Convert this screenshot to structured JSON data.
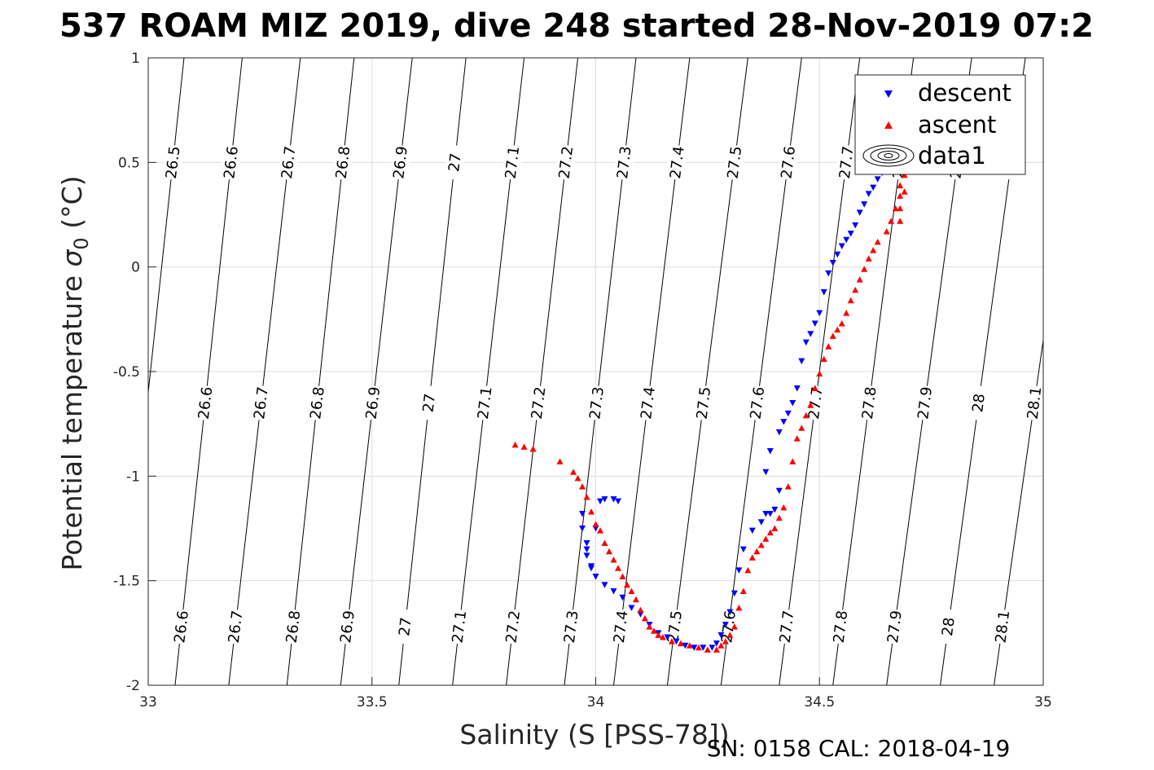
{
  "chart_data": {
    "type": "scatter",
    "title": "537 ROAM MIZ 2019, dive 248 started 28-Nov-2019 07:2",
    "xlabel": "Salinity (S [PSS-78])",
    "ylabel_main": "Potential temperature ",
    "ylabel_sigma": "σ",
    "ylabel_sub": "0",
    "ylabel_unit": " (°C)",
    "footer": "SN: 0158  CAL: 2018-04-19",
    "xlim": [
      33,
      35
    ],
    "ylim": [
      -2,
      1
    ],
    "x_ticks": [
      33,
      33.5,
      34,
      34.5,
      35
    ],
    "x_tick_labels": [
      "33",
      "33.5",
      "34",
      "34.5",
      "35"
    ],
    "y_ticks": [
      -2,
      -1.5,
      -1,
      -0.5,
      0,
      0.5,
      1
    ],
    "y_tick_labels": [
      "-2",
      "-1.5",
      "-1",
      "-0.5",
      "0",
      "0.5",
      "1"
    ],
    "grid": true,
    "legend_position": "top-right",
    "legend": [
      "descent",
      "ascent",
      "data1"
    ],
    "colors": {
      "descent": "#0000ff",
      "ascent": "#ff0000",
      "contour": "#000000",
      "grid": "#dcdcdc"
    },
    "density_contours": {
      "levels": [
        "26.5",
        "26.6",
        "26.7",
        "26.8",
        "26.9",
        "27",
        "27.1",
        "27.2",
        "27.3",
        "27.4",
        "27.5",
        "27.6",
        "27.7",
        "27.8",
        "27.9",
        "28",
        "28.1"
      ],
      "s_at_theta_minus2": [
        32.93,
        33.06,
        33.18,
        33.31,
        33.43,
        33.56,
        33.68,
        33.8,
        33.93,
        34.04,
        34.16,
        34.28,
        34.41,
        34.53,
        34.65,
        34.77,
        34.89
      ],
      "s_at_theta_1": [
        33.08,
        33.21,
        33.34,
        33.46,
        33.59,
        33.71,
        33.84,
        33.96,
        34.09,
        34.21,
        34.34,
        34.46,
        34.59,
        34.71,
        34.84,
        34.96,
        35.09
      ],
      "label_rows_theta": [
        0.5,
        -0.65,
        -1.72
      ]
    },
    "series": [
      {
        "name": "descent",
        "marker": "triangle-down",
        "x": [
          33.97,
          33.97,
          33.98,
          33.99,
          34.0,
          34.01,
          34.02,
          34.04,
          34.05,
          34.0,
          33.98,
          33.98,
          33.99,
          34.0,
          34.02,
          34.04,
          34.06,
          34.08,
          34.1,
          34.12,
          34.14,
          34.16,
          34.18,
          34.2,
          34.22,
          34.24,
          34.26,
          34.27,
          34.28,
          34.29,
          34.3,
          34.31,
          34.32,
          34.33,
          34.35,
          34.37,
          34.38,
          34.39,
          34.4,
          34.41,
          34.38,
          34.39,
          34.41,
          34.42,
          34.43,
          34.44,
          34.45,
          34.46,
          34.47,
          34.48,
          34.49,
          34.5,
          34.51,
          34.52,
          34.53,
          34.54,
          34.55,
          34.56,
          34.57,
          34.58,
          34.59,
          34.6,
          34.61,
          34.62,
          34.63,
          34.64,
          34.65
        ],
        "y": [
          -1.18,
          -1.25,
          -1.35,
          -1.43,
          -1.48,
          -1.12,
          -1.11,
          -1.11,
          -1.12,
          -1.25,
          -1.32,
          -1.38,
          -1.44,
          -1.48,
          -1.52,
          -1.55,
          -1.58,
          -1.63,
          -1.66,
          -1.71,
          -1.75,
          -1.77,
          -1.79,
          -1.81,
          -1.82,
          -1.82,
          -1.82,
          -1.8,
          -1.76,
          -1.71,
          -1.65,
          -1.56,
          -1.45,
          -1.35,
          -1.26,
          -1.22,
          -1.18,
          -1.18,
          -1.16,
          -1.07,
          -0.98,
          -0.88,
          -0.79,
          -0.74,
          -0.7,
          -0.65,
          -0.58,
          -0.45,
          -0.36,
          -0.32,
          -0.27,
          -0.22,
          -0.12,
          -0.03,
          0.02,
          0.06,
          0.1,
          0.13,
          0.16,
          0.2,
          0.26,
          0.3,
          0.35,
          0.38,
          0.42,
          0.45,
          0.48
        ]
      },
      {
        "name": "ascent",
        "marker": "triangle-up",
        "x": [
          33.82,
          33.84,
          33.86,
          33.92,
          33.95,
          33.96,
          33.97,
          33.98,
          33.99,
          34.0,
          34.01,
          34.02,
          34.03,
          34.04,
          34.05,
          34.06,
          34.07,
          34.08,
          34.09,
          34.1,
          34.11,
          34.12,
          34.13,
          34.14,
          34.15,
          34.17,
          34.19,
          34.21,
          34.23,
          34.25,
          34.27,
          34.28,
          34.29,
          34.3,
          34.31,
          34.32,
          34.33,
          34.34,
          34.35,
          34.36,
          34.37,
          34.38,
          34.39,
          34.4,
          34.41,
          34.42,
          34.43,
          34.44,
          34.45,
          34.46,
          34.47,
          34.48,
          34.49,
          34.5,
          34.51,
          34.52,
          34.53,
          34.54,
          34.55,
          34.56,
          34.57,
          34.58,
          34.59,
          34.6,
          34.61,
          34.62,
          34.63,
          34.65,
          34.66,
          34.67,
          34.68,
          34.68,
          34.69,
          34.69,
          34.68,
          34.68
        ],
        "y": [
          -0.85,
          -0.86,
          -0.87,
          -0.93,
          -0.98,
          -1.01,
          -1.05,
          -1.1,
          -1.17,
          -1.23,
          -1.26,
          -1.32,
          -1.36,
          -1.4,
          -1.44,
          -1.48,
          -1.52,
          -1.55,
          -1.59,
          -1.64,
          -1.68,
          -1.72,
          -1.74,
          -1.76,
          -1.77,
          -1.79,
          -1.8,
          -1.81,
          -1.82,
          -1.83,
          -1.83,
          -1.81,
          -1.79,
          -1.76,
          -1.72,
          -1.63,
          -1.55,
          -1.45,
          -1.39,
          -1.36,
          -1.33,
          -1.3,
          -1.27,
          -1.25,
          -1.2,
          -1.15,
          -1.05,
          -0.93,
          -0.82,
          -0.77,
          -0.71,
          -0.66,
          -0.58,
          -0.51,
          -0.44,
          -0.38,
          -0.33,
          -0.3,
          -0.27,
          -0.22,
          -0.16,
          -0.11,
          -0.06,
          -0.01,
          0.04,
          0.08,
          0.12,
          0.17,
          0.22,
          0.28,
          0.34,
          0.39,
          0.44,
          0.36,
          0.28,
          0.22
        ]
      }
    ]
  }
}
